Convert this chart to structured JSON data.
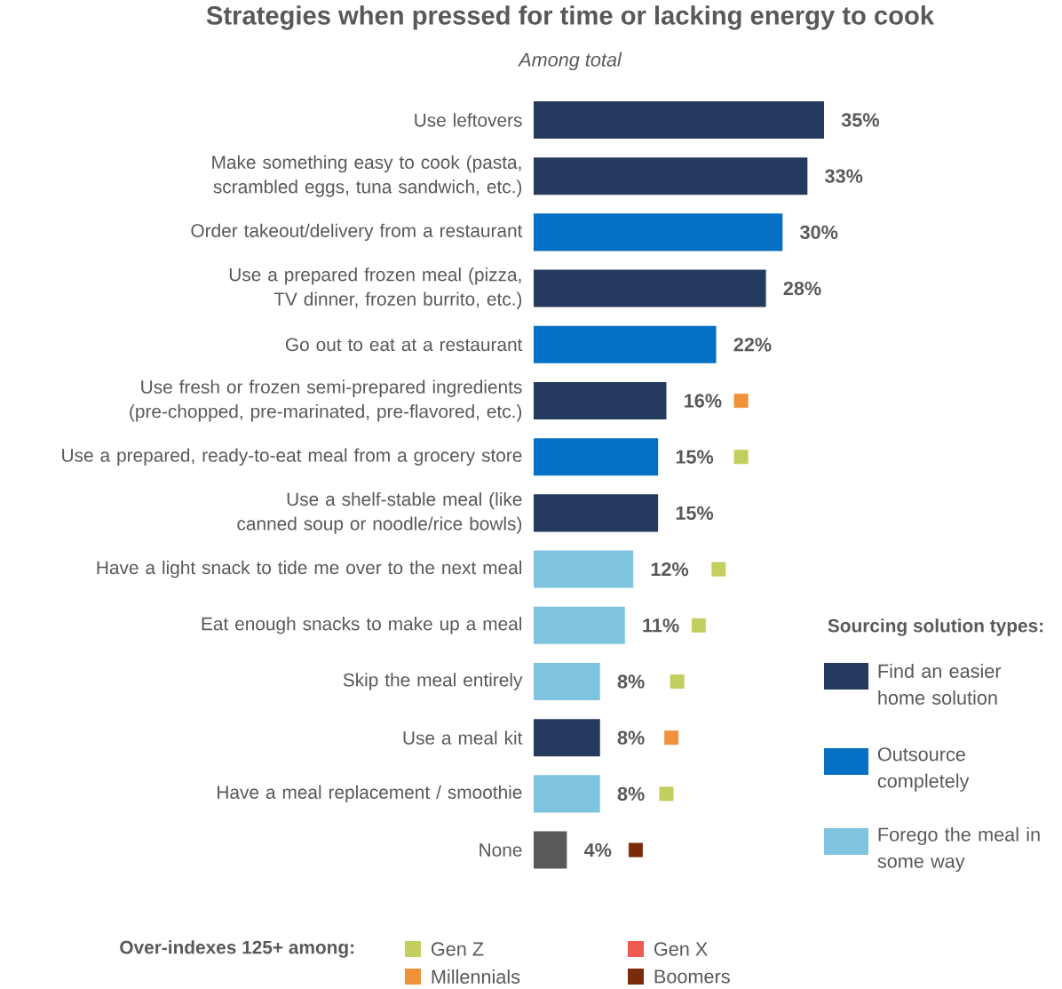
{
  "chart_data": {
    "type": "bar",
    "orientation": "horizontal",
    "title": "Strategies when pressed for time or lacking energy to cook",
    "subtitle": "Among total",
    "categories": [
      "Use leftovers",
      "Make something easy to cook (pasta, scrambled eggs, tuna sandwich, etc.)",
      "Order takeout/delivery from a restaurant",
      "Use a prepared frozen meal (pizza, TV dinner, frozen burrito, etc.)",
      "Go out to eat at a restaurant",
      "Use fresh or frozen semi-prepared ingredients (pre-chopped, pre-marinated, pre-flavored, etc.)",
      "Use a prepared, ready-to-eat meal from a grocery store",
      "Use a shelf-stable meal (like canned soup or noodle/rice bowls)",
      "Have a light snack to tide me over to the next meal",
      "Eat enough snacks to make up a meal",
      "Skip the meal entirely",
      "Use a meal kit",
      "Have a meal replacement / smoothie",
      "None"
    ],
    "xlim": [
      0,
      35
    ],
    "series": [
      {
        "name": "Find an easier home solution",
        "color": "#243a5e",
        "values": [
          35,
          33,
          null,
          28,
          null,
          16,
          null,
          15,
          null,
          null,
          null,
          8,
          null,
          null
        ],
        "value_labels": [
          "35%",
          "33%",
          null,
          "28%",
          null,
          "16%",
          null,
          "15%",
          null,
          null,
          null,
          "8%",
          null,
          null
        ]
      },
      {
        "name": "Outsource completely",
        "color": "#0570c4",
        "values": [
          null,
          null,
          30,
          null,
          22,
          null,
          15,
          null,
          null,
          null,
          null,
          null,
          null,
          null
        ],
        "value_labels": [
          null,
          null,
          "30%",
          null,
          "22%",
          null,
          "15%",
          null,
          null,
          null,
          null,
          null,
          null,
          null
        ]
      },
      {
        "name": "Forego the meal in some way",
        "color": "#7fc4de",
        "values": [
          null,
          null,
          null,
          null,
          null,
          null,
          null,
          null,
          12,
          11,
          8,
          null,
          8,
          null
        ],
        "value_labels": [
          null,
          null,
          null,
          null,
          null,
          null,
          null,
          null,
          "12%",
          "11%",
          "8%",
          null,
          "8%",
          null
        ]
      },
      {
        "color": "#595959",
        "values": [
          null,
          null,
          null,
          null,
          null,
          null,
          null,
          null,
          null,
          null,
          null,
          null,
          null,
          4
        ],
        "value_labels": [
          null,
          null,
          null,
          null,
          null,
          null,
          null,
          null,
          null,
          null,
          null,
          null,
          null,
          "4%"
        ]
      },
      {
        "name": "Gen Z",
        "type": "scatter",
        "color": "#c2cf5e",
        "values": [
          null,
          null,
          null,
          null,
          null,
          null,
          25,
          null,
          22.3,
          19.9,
          17.3,
          null,
          16,
          null
        ]
      },
      {
        "name": "Millennials",
        "type": "scatter",
        "color": "#f0923a",
        "values": [
          null,
          null,
          null,
          null,
          null,
          25,
          null,
          null,
          null,
          null,
          null,
          16.6,
          null,
          null
        ]
      },
      {
        "name": "Gen X",
        "type": "scatter",
        "color": "#f05a4f",
        "values": [
          null,
          null,
          null,
          null,
          null,
          null,
          null,
          null,
          null,
          null,
          null,
          null,
          null,
          null
        ]
      },
      {
        "name": "Boomers",
        "type": "scatter",
        "color": "#7b2a0c",
        "values": [
          null,
          null,
          null,
          null,
          null,
          null,
          null,
          null,
          null,
          null,
          null,
          null,
          null,
          12.3
        ]
      }
    ],
    "marker": "square",
    "legend": "right",
    "legend_title": "Sourcing solution types:",
    "annotations": [
      "Over-indexes 125+ among:"
    ]
  }
}
